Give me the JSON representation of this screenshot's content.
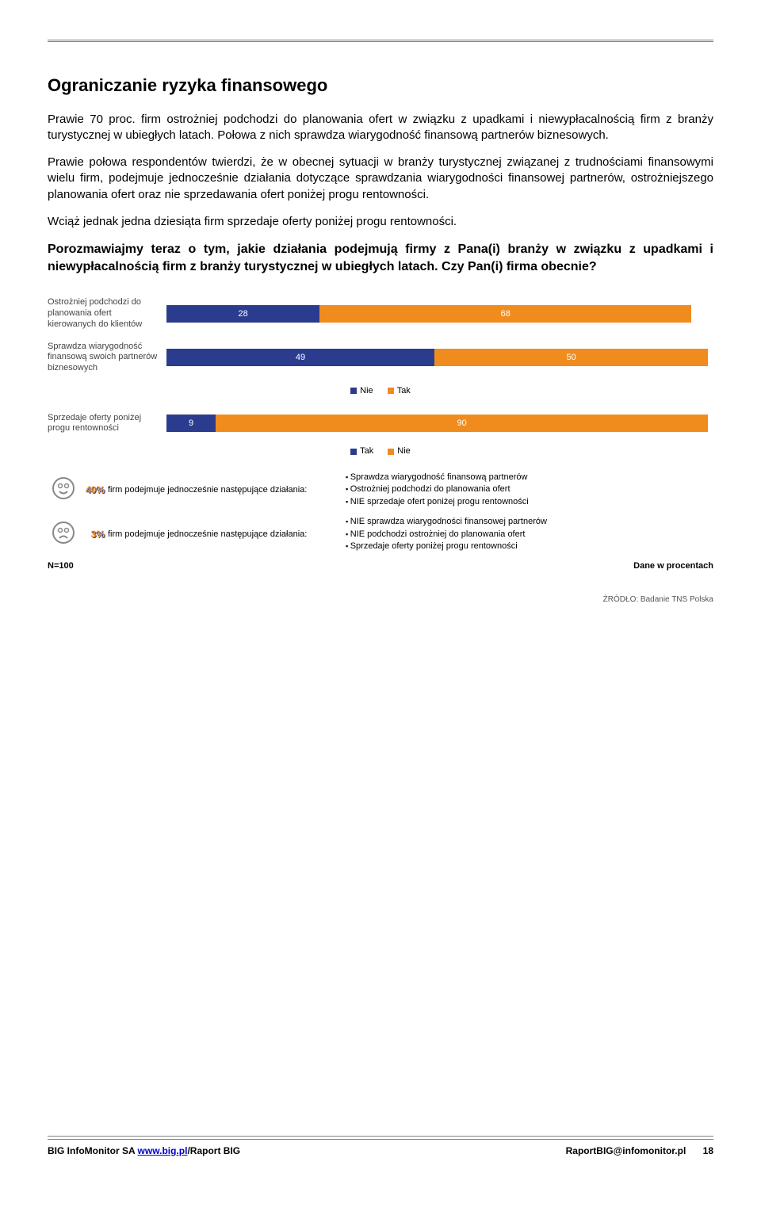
{
  "heading": "Ograniczanie ryzyka finansowego",
  "para1": "Prawie 70 proc. firm ostrożniej podchodzi do planowania ofert w związku z upadkami i niewypłacalnością firm z branży turystycznej w ubiegłych latach. Połowa z nich sprawdza wiarygodność finansową partnerów biznesowych.",
  "para2": "Prawie połowa respondentów twierdzi, że w obecnej sytuacji w branży turystycznej związanej z trudnościami finansowymi wielu firm, podejmuje jednocześnie działania dotyczące sprawdzania wiarygodności finansowej partnerów, ostrożniejszego planowania ofert oraz nie sprzedawania ofert poniżej progu rentowności.",
  "para3": "Wciąż jednak jedna dziesiąta firm sprzedaje oferty poniżej progu rentowności.",
  "question": "Porozmawiajmy teraz o tym, jakie działania podejmują firmy z Pana(i) branży w związku z upadkami i niewypłacalnością firm z branży turystycznej w ubiegłych latach. Czy Pan(i) firma obecnie?",
  "chart1": {
    "type": "stacked-bar-horizontal",
    "colors": {
      "nie": "#2b3c8f",
      "tak": "#f08c1e"
    },
    "legend": [
      "Nie",
      "Tak"
    ],
    "total_width_pct": 96,
    "rows": [
      {
        "label": "Ostrożniej podchodzi do planowania ofert kierowanych do klientów",
        "segments": [
          {
            "key": "nie",
            "value": 28
          },
          {
            "key": "tak",
            "value": 68
          }
        ]
      },
      {
        "label": "Sprawdza wiarygodność finansową swoich partnerów biznesowych",
        "segments": [
          {
            "key": "nie",
            "value": 49
          },
          {
            "key": "tak",
            "value": 50
          }
        ]
      }
    ]
  },
  "chart2": {
    "type": "stacked-bar-horizontal",
    "colors": {
      "tak": "#2b3c8f",
      "nie": "#f08c1e"
    },
    "legend": [
      "Tak",
      "Nie"
    ],
    "total_width_pct": 99,
    "rows": [
      {
        "label": "Sprzedaje oferty poniżej progu rentowności",
        "segments": [
          {
            "key": "tak",
            "value": 9
          },
          {
            "key": "nie",
            "value": 90
          }
        ]
      }
    ]
  },
  "smileys": [
    {
      "mood": "happy",
      "pct": "40%",
      "pct_color": "#f08c1e",
      "pct_shadow": "#2b3c8f",
      "desc": "firm podejmuje jednocześnie następujące działania:",
      "bullets": [
        "Sprawdza wiarygodność finansową partnerów",
        "Ostrożniej podchodzi do planowania ofert",
        "NIE sprzedaje ofert poniżej progu rentowności"
      ]
    },
    {
      "mood": "sad",
      "pct": "3%",
      "pct_color": "#f08c1e",
      "pct_shadow": "#2b3c8f",
      "desc": "firm podejmuje jednocześnie następujące działania:",
      "bullets": [
        "NIE sprawdza wiarygodności finansowej partnerów",
        "NIE podchodzi ostrożniej do planowania ofert",
        "Sprzedaje oferty poniżej progu rentowności"
      ]
    }
  ],
  "n_label": "N=100",
  "percent_label": "Dane w procentach",
  "source": "ŹRÓDŁO: Badanie TNS Polska",
  "footer": {
    "left_a": "BIG InfoMonitor SA ",
    "link": "www.big.pl",
    "left_b": "/Raport BIG",
    "right": "RaportBIG@infomonitor.pl",
    "page": "18"
  }
}
